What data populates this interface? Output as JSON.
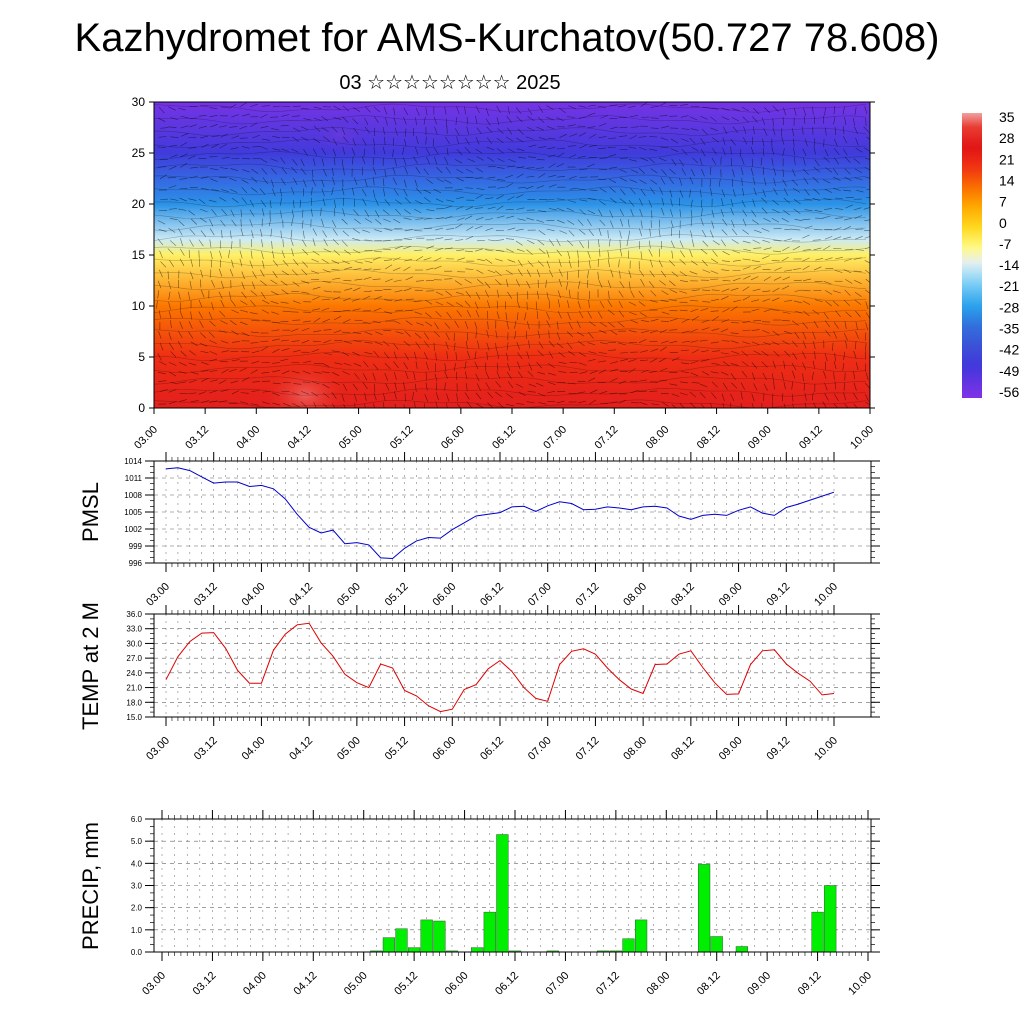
{
  "title": "Kazhydromet for AMS-Kurchatov(50.727 78.608)",
  "subtitle": "03 ☆☆☆☆☆☆☆☆ 2025",
  "x_ticks": [
    "03.00",
    "03.12",
    "04.00",
    "04.12",
    "05.00",
    "05.12",
    "06.00",
    "06.12",
    "07.00",
    "07.12",
    "08.00",
    "08.12",
    "09.00",
    "09.12",
    "10.00"
  ],
  "chart_data": [
    {
      "type": "heatmap",
      "name": "cross-section",
      "x_ticks": [
        "03.00",
        "03.12",
        "04.00",
        "04.12",
        "05.00",
        "05.12",
        "06.00",
        "06.12",
        "07.00",
        "07.12",
        "08.00",
        "08.12",
        "09.00",
        "09.12",
        "10.00"
      ],
      "yticks": [
        0,
        5,
        10,
        15,
        20,
        25,
        30
      ],
      "ylim": [
        0,
        30
      ],
      "colorbar": {
        "labels": [
          "35",
          "28",
          "21",
          "14",
          "7",
          "0",
          "-7",
          "-14",
          "-21",
          "-28",
          "-35",
          "-42",
          "-49",
          "-56"
        ],
        "range": [
          -60,
          40
        ]
      },
      "temperature_profile": {
        "heights": [
          0,
          5,
          10,
          15,
          16.5,
          20,
          25,
          30
        ],
        "values": [
          30,
          22,
          13,
          -5,
          -14,
          -30,
          -48,
          -58
        ]
      },
      "wind_barbs": true
    },
    {
      "type": "line",
      "ylabel": "PMSL",
      "yticks": [
        996,
        999,
        1002,
        1005,
        1008,
        1011,
        1014
      ],
      "ylim": [
        996,
        1014
      ],
      "color": "#0000cc",
      "x_ticks": [
        "03.00",
        "03.12",
        "04.00",
        "04.12",
        "05.00",
        "05.12",
        "06.00",
        "06.12",
        "07.00",
        "07.12",
        "08.00",
        "08.12",
        "09.00",
        "09.12",
        "10.00"
      ],
      "values": [
        1012.6,
        1012.8,
        1012.3,
        1011.2,
        1010.1,
        1010.3,
        1010.3,
        1009.5,
        1009.7,
        1009.1,
        1007.3,
        1004.6,
        1002.3,
        1001.3,
        1001.8,
        999.4,
        999.6,
        999.2,
        996.9,
        996.8,
        998.6,
        999.9,
        1000.5,
        1000.4,
        1001.9,
        1003.1,
        1004.3,
        1004.6,
        1004.9,
        1005.9,
        1006.0,
        1005.1,
        1006.1,
        1006.8,
        1006.5,
        1005.4,
        1005.5,
        1005.9,
        1005.7,
        1005.4,
        1005.9,
        1006.0,
        1005.7,
        1004.3,
        1003.7,
        1004.4,
        1004.6,
        1004.4,
        1005.3,
        1005.9,
        1004.8,
        1004.4,
        1005.8,
        1006.4,
        1007.1,
        1007.8,
        1008.5
      ]
    },
    {
      "type": "line",
      "ylabel": "TEMP at 2 M",
      "yticks": [
        15.0,
        18.0,
        21.0,
        24.0,
        27.0,
        30.0,
        33.0,
        36.0
      ],
      "ylim": [
        15,
        36
      ],
      "color": "#dd0000",
      "x_ticks": [
        "03.00",
        "03.12",
        "04.00",
        "04.12",
        "05.00",
        "05.12",
        "06.00",
        "06.12",
        "07.00",
        "07.12",
        "08.00",
        "08.12",
        "09.00",
        "09.12",
        "10.00"
      ],
      "values": [
        22.6,
        27.3,
        30.4,
        32.1,
        32.2,
        29.0,
        24.5,
        21.9,
        21.9,
        28.6,
        31.9,
        33.8,
        34.1,
        30.1,
        27.4,
        23.7,
        22.0,
        21.0,
        25.8,
        25.0,
        20.4,
        19.3,
        17.3,
        16.1,
        16.6,
        20.6,
        21.6,
        24.8,
        26.5,
        24.3,
        21.0,
        18.8,
        18.2,
        25.7,
        28.4,
        28.9,
        27.8,
        25.0,
        22.6,
        20.7,
        19.8,
        25.7,
        25.8,
        27.8,
        28.5,
        25.1,
        22.0,
        19.6,
        19.7,
        25.7,
        28.5,
        28.7,
        25.8,
        23.9,
        22.3,
        19.5,
        19.8
      ]
    },
    {
      "type": "bar",
      "ylabel": "PRECIP, mm",
      "yticks": [
        0.0,
        1.0,
        2.0,
        3.0,
        4.0,
        5.0,
        6.0
      ],
      "ylim": [
        0,
        6
      ],
      "color": "#00ee00",
      "x_ticks": [
        "03.00",
        "03.12",
        "04.00",
        "04.12",
        "05.00",
        "05.12",
        "06.00",
        "06.12",
        "07.00",
        "07.12",
        "08.00",
        "08.12",
        "09.00",
        "09.12",
        "10.00"
      ],
      "values": [
        0,
        0,
        0,
        0,
        0,
        0,
        0,
        0,
        0,
        0,
        0,
        0,
        0,
        0,
        0,
        0,
        0,
        0.05,
        0.65,
        1.05,
        0.2,
        1.45,
        1.4,
        0.05,
        0,
        0.2,
        1.8,
        5.3,
        0.05,
        0,
        0,
        0.05,
        0,
        0,
        0,
        0.05,
        0.05,
        0.6,
        1.45,
        0,
        0,
        0,
        0,
        3.95,
        0.7,
        0,
        0.25,
        0,
        0,
        0,
        0,
        0,
        1.8,
        3.0,
        0,
        0,
        0
      ]
    }
  ]
}
